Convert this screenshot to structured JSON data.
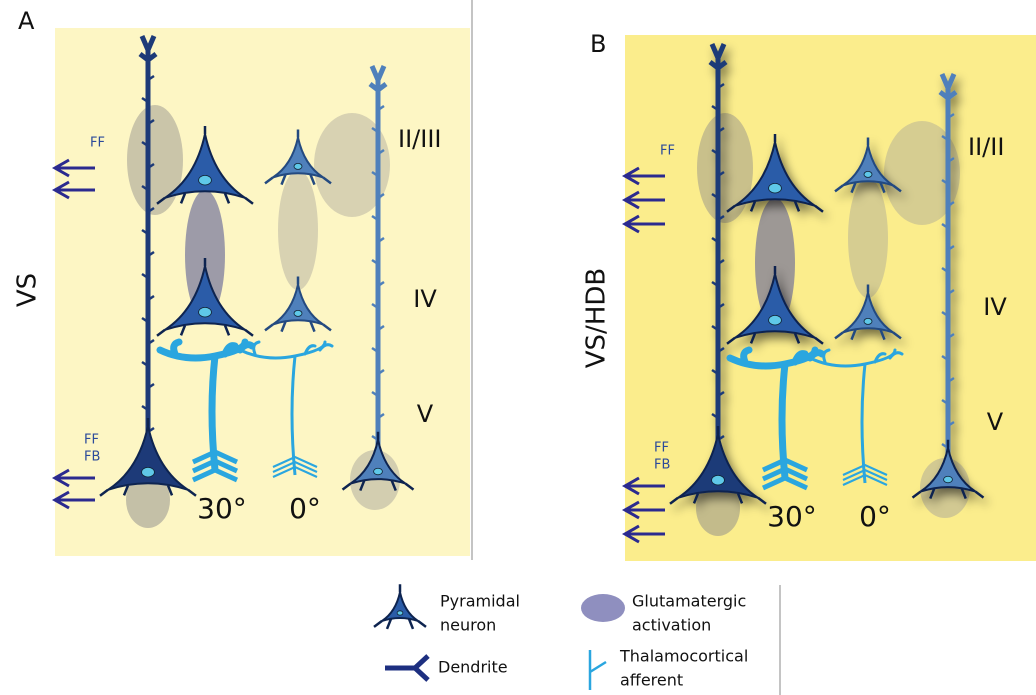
{
  "panels": [
    {
      "label": "A",
      "condition": "VS",
      "ff_top": "FF",
      "ff_bottom": "FF",
      "fb": "FB",
      "layers": [
        "II/III",
        "IV",
        "V"
      ],
      "angles": [
        "30°",
        "0°"
      ]
    },
    {
      "label": "B",
      "condition": "VS/HDB",
      "ff_top": "FF",
      "ff_bottom": "FF",
      "fb": "FB",
      "layers": [
        "II/II",
        "IV",
        "V"
      ],
      "angles": [
        "30°",
        "0°"
      ]
    }
  ],
  "legend": [
    {
      "label": [
        "Pyramidal",
        "neuron"
      ]
    },
    {
      "label": [
        "Glutamatergic",
        "activation"
      ]
    },
    {
      "label": [
        "Dendrite"
      ]
    },
    {
      "label": [
        "Thalamocortical",
        "afferent"
      ]
    }
  ]
}
